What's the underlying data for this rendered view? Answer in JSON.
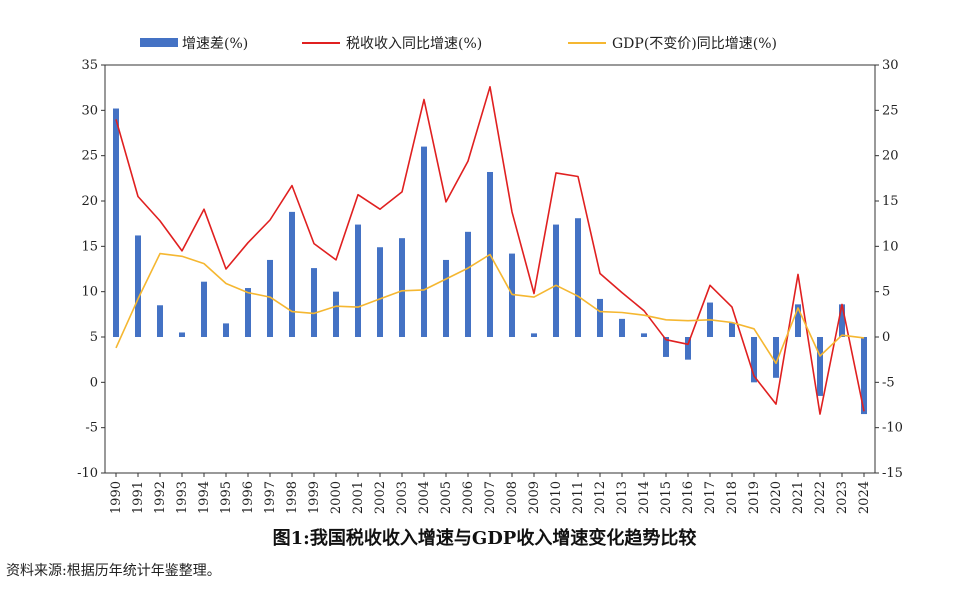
{
  "caption": "图1:我国税收收入增速与GDP收入增速变化趋势比较",
  "source_note": "资料来源:根据历年统计年鉴整理。",
  "chart_data": {
    "type": "bar+line",
    "categories": [
      "1990",
      "1991",
      "1992",
      "1993",
      "1994",
      "1995",
      "1996",
      "1997",
      "1998",
      "1999",
      "2000",
      "2001",
      "2002",
      "2003",
      "2004",
      "2005",
      "2006",
      "2007",
      "2008",
      "2009",
      "2010",
      "2011",
      "2012",
      "2013",
      "2014",
      "2015",
      "2016",
      "2017",
      "2018",
      "2019",
      "2020",
      "2021",
      "2022",
      "2023",
      "2024"
    ],
    "left_axis": {
      "min": -10,
      "max": 35,
      "ticks": [
        -10,
        -5,
        0,
        5,
        10,
        15,
        20,
        25,
        30,
        35
      ]
    },
    "right_axis": {
      "min": -15,
      "max": 30,
      "ticks": [
        -15,
        -10,
        -5,
        0,
        5,
        10,
        15,
        20,
        25,
        30
      ]
    },
    "bar_baseline": 5,
    "series": [
      {
        "name": "增速差(%)",
        "kind": "bar",
        "axis": "left",
        "color": "#4472C4",
        "values": [
          30.2,
          16.2,
          8.5,
          5.5,
          11.1,
          6.5,
          10.4,
          13.5,
          18.8,
          12.6,
          10.0,
          17.4,
          14.9,
          15.9,
          26.0,
          13.5,
          16.6,
          23.2,
          14.2,
          5.4,
          17.4,
          18.1,
          9.2,
          7.0,
          5.4,
          2.8,
          2.5,
          8.8,
          6.6,
          0.0,
          0.5,
          8.6,
          -1.5,
          8.6,
          -3.5
        ]
      },
      {
        "name": "税收收入同比增速(%)",
        "kind": "line",
        "axis": "right",
        "color": "#E02020",
        "values": [
          24.0,
          15.5,
          12.8,
          9.5,
          14.1,
          7.5,
          10.4,
          12.9,
          16.7,
          10.3,
          8.5,
          15.7,
          14.1,
          16.0,
          26.2,
          14.9,
          19.4,
          27.6,
          13.8,
          4.8,
          18.1,
          17.7,
          7.0,
          4.9,
          2.9,
          -0.3,
          -0.8,
          5.7,
          3.3,
          -4.3,
          -7.4,
          6.9,
          -8.5,
          3.6,
          -8.2
        ]
      },
      {
        "name": "GDP(不变价)同比增速(%)",
        "kind": "line",
        "axis": "right",
        "color": "#F5B731",
        "values": [
          -1.2,
          4.2,
          9.2,
          8.9,
          8.1,
          5.9,
          4.9,
          4.4,
          2.8,
          2.6,
          3.4,
          3.3,
          4.2,
          5.1,
          5.2,
          6.4,
          7.6,
          9.1,
          4.7,
          4.4,
          5.7,
          4.5,
          2.8,
          2.7,
          2.4,
          1.9,
          1.8,
          1.9,
          1.6,
          0.9,
          -2.9,
          3.2,
          -2.1,
          0.2,
          -0.1
        ]
      }
    ]
  }
}
